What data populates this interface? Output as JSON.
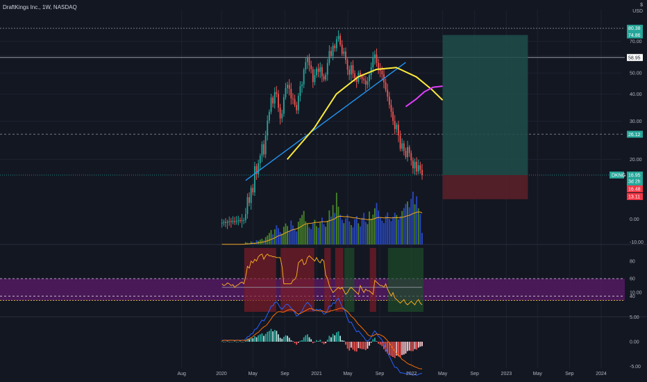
{
  "header": {
    "title": "DraftKings Inc., 1W, NASDAQ",
    "currency_symbol": "$",
    "currency": "USD"
  },
  "colors": {
    "background": "#131722",
    "up": "#26a69a",
    "down": "#ef5350",
    "ma_yellow": "#ffeb3b",
    "ma_magenta": "#e040fb",
    "trendline": "#2196f3",
    "volume_blue": "#2a4cc8",
    "volume_green": "#4a8a2a",
    "volume_ma": "#f5a623",
    "target_zone": "#1f4d4a",
    "stop_zone": "#5a1f28"
  },
  "chart_data": [
    {
      "type": "line",
      "title": "",
      "xlabel": "",
      "ylabel": "",
      "x_ticks": [
        "Aug",
        "2020",
        "May",
        "Sep",
        "2021",
        "May",
        "Sep",
        "2022",
        "May",
        "Sep",
        "2023",
        "May",
        "Sep",
        "2024"
      ],
      "y_ticks": [
        "20.00",
        "30.00",
        "40.00",
        "50.00",
        "60.00",
        "70.00"
      ],
      "ylim": [
        15,
        80
      ],
      "price_labels": [
        {
          "name": "high",
          "value": "80.38",
          "color": "#26a69a"
        },
        {
          "name": "target",
          "value": "74.86",
          "color": "#26a69a"
        },
        {
          "name": "level",
          "value": "58.95",
          "color": "#ffffff"
        },
        {
          "name": "level",
          "value": "26.12",
          "color": "#26a69a"
        },
        {
          "name": "DKNG",
          "value": "16.95",
          "color": "#26a69a",
          "countdown": "3d 2h"
        },
        {
          "name": "stop",
          "value": "16.48",
          "color": "#f23645"
        },
        {
          "name": "stop-low",
          "value": "13.11",
          "color": "#f23645"
        }
      ],
      "candles": {
        "date_start": "2020-01-03",
        "close": [
          10.2,
          10.3,
          10.2,
          10.3,
          10.4,
          10.3,
          10.4,
          10.3,
          10.4,
          10.5,
          10.4,
          10.5,
          10.5,
          11.2,
          13.4,
          12.6,
          14.8,
          14.1,
          18.6,
          17.1,
          19.2,
          20.8,
          23.5,
          21.1,
          25.8,
          30.2,
          33.1,
          38.5,
          36.2,
          40.8,
          40.1,
          34.6,
          30.9,
          32.5,
          38.7,
          42.6,
          44.1,
          42.3,
          38.2,
          37.9,
          35.6,
          33.7,
          39.2,
          43.5,
          44.3,
          51.8,
          56.1,
          58.9,
          54.3,
          52.1,
          45.4,
          48.9,
          52.4,
          50.6,
          53.2,
          48.3,
          46.7,
          49.1,
          55.6,
          63.2,
          59.9,
          66.8,
          65.1,
          71.6,
          74.2,
          67.5,
          61.3,
          62.8,
          57.4,
          51.9,
          49.2,
          54.3,
          49.8,
          47.3,
          45.6,
          50.1,
          48.4,
          47.1,
          46.3,
          44.2,
          45.8,
          48.9,
          53.1,
          58.7,
          60.9,
          55.7,
          52.4,
          51.2,
          49.4,
          45.3,
          41.8,
          38.9,
          35.7,
          33.2,
          30.1,
          27.6,
          28.9,
          25.8,
          22.4,
          23.7,
          21.9,
          20.5,
          22.8,
          21.4,
          19.8,
          18.2,
          19.5,
          17.6,
          18.8,
          17.9,
          16.95
        ]
      },
      "series": [
        {
          "name": "",
          "color": "#2196f3",
          "points": [
            [
              "2020-04-03",
              16
            ],
            [
              "2021-12-10",
              56
            ]
          ]
        },
        {
          "name": "",
          "color": "#ffeb3b",
          "points": [
            [
              "2020-09-10",
              20
            ],
            [
              "2020-12-24",
              28
            ],
            [
              "2021-03-18",
              40
            ],
            [
              "2021-06-10",
              48
            ],
            [
              "2021-08-20",
              52
            ],
            [
              "2021-11-04",
              53
            ],
            [
              "2022-01-20",
              48
            ],
            [
              "2022-03-20",
              42
            ],
            [
              "2022-05-01",
              37.5
            ]
          ]
        },
        {
          "name": "",
          "color": "#e040fb",
          "points": [
            [
              "2021-12-10",
              35
            ],
            [
              "2022-01-20",
              38
            ],
            [
              "2022-02-20",
              41
            ],
            [
              "2022-03-25",
              43
            ],
            [
              "2022-05-01",
              43.5
            ]
          ]
        }
      ],
      "positions": {
        "entry": 16.95,
        "target": 74.86,
        "stop": 13.11,
        "from": "2022-05-01",
        "to": "2023-03-25"
      }
    },
    {
      "type": "bar",
      "title": "",
      "y_ticks": [
        "0.00",
        "-10.00"
      ],
      "ylim": [
        -10,
        60
      ],
      "values": [
        0.3,
        0.2,
        0.1,
        0.3,
        0.2,
        0.1,
        0.2,
        0.3,
        0.2,
        0.1,
        0.4,
        0.3,
        0.2,
        2.5,
        1.8,
        1.5,
        3.2,
        2.8,
        1.9,
        4.5,
        3.8,
        5.1,
        6.2,
        4.7,
        7.8,
        9.6,
        12.3,
        15.4,
        10.8,
        16.2,
        20.5,
        17.4,
        13.2,
        11.6,
        18.9,
        22.4,
        19.7,
        14.8,
        25.6,
        20.3,
        16.7,
        13.9,
        24.3,
        28.1,
        31.5,
        35.8,
        24.7,
        21.9,
        18.2,
        16.4,
        22.8,
        26.3,
        19.5,
        17.8,
        23.4,
        28.7,
        21.6,
        18.9,
        25.3,
        36.4,
        29.8,
        42.1,
        33.6,
        55.2,
        40.3,
        31.7,
        26.4,
        22.8,
        27.9,
        32.1,
        24.5,
        20.7,
        18.3,
        26.8,
        30.4,
        22.6,
        19.2,
        28.5,
        33.7,
        24.1,
        21.8,
        35.2,
        27.4,
        31.9,
        38.6,
        44.3,
        36.1,
        28.7,
        25.4,
        22.8,
        30.6,
        34.2,
        27.3,
        24.9,
        29.6,
        33.8,
        31.4,
        26.7,
        30.2,
        35.7,
        38.9,
        43.2,
        45.8,
        39.6,
        48.7,
        56.3,
        42.8,
        51.4,
        38.6,
        32.7,
        12.3
      ],
      "ma": [
        0.2,
        0.2,
        0.2,
        0.2,
        0.2,
        0.2,
        0.2,
        0.2,
        0.2,
        0.2,
        0.2,
        0.3,
        0.3,
        0.5,
        0.6,
        0.7,
        0.9,
        1.1,
        1.2,
        1.5,
        1.8,
        2.1,
        2.5,
        2.8,
        3.3,
        3.9,
        4.6,
        5.5,
        6.1,
        7.0,
        8.2,
        9.1,
        9.8,
        10.4,
        11.4,
        12.5,
        13.4,
        14.0,
        15.1,
        15.8,
        16.3,
        16.6,
        17.5,
        18.5,
        19.7,
        21.1,
        21.8,
        22.3,
        22.5,
        22.6,
        23.0,
        23.5,
        23.6,
        23.6,
        23.9,
        24.3,
        24.3,
        24.3,
        24.6,
        25.4,
        25.8,
        26.7,
        27.3,
        29.0,
        29.8,
        30.1,
        30.0,
        29.7,
        29.6,
        29.7,
        29.4,
        29.0,
        28.5,
        28.3,
        28.3,
        27.9,
        27.4,
        27.2,
        27.2,
        26.8,
        26.4,
        26.7,
        26.7,
        27.0,
        27.6,
        28.4,
        28.8,
        28.8,
        28.6,
        28.3,
        28.4,
        28.6,
        28.5,
        28.3,
        28.4,
        28.6,
        28.7,
        28.6,
        28.7,
        29.0,
        29.4,
        30.0,
        30.7,
        31.1,
        31.9,
        33.1,
        33.6,
        34.4,
        34.7,
        34.6,
        33.6
      ]
    },
    {
      "type": "line",
      "title": "",
      "y_ticks": [
        "80",
        "60",
        "40"
      ],
      "ylim": [
        22,
        95
      ],
      "bands": [
        [
          35,
          60
        ],
        [
          40,
          40
        ]
      ],
      "values": [
        54,
        52,
        53,
        55,
        54,
        52,
        53,
        50,
        52,
        53,
        55,
        56,
        54,
        62,
        74,
        72,
        80,
        78,
        82,
        80,
        85,
        87,
        88,
        82,
        86,
        88,
        86,
        86,
        85,
        85,
        84,
        84,
        84,
        74,
        54,
        54,
        54,
        54,
        54,
        58,
        59,
        63,
        78,
        80,
        82,
        76,
        77,
        84,
        86,
        84,
        82,
        80,
        84,
        80,
        78,
        82,
        80,
        64,
        60,
        52,
        48,
        44,
        46,
        48,
        50,
        48,
        50,
        46,
        42,
        44,
        48,
        50,
        48,
        46,
        44,
        42,
        52,
        48,
        44,
        48,
        46,
        46,
        44,
        42,
        58,
        56,
        54,
        52,
        52,
        50,
        54,
        48,
        44,
        40,
        44,
        38,
        36,
        34,
        32,
        34,
        36,
        32,
        30,
        32,
        34,
        32,
        30,
        34,
        36,
        32,
        30
      ]
    },
    {
      "type": "bar",
      "title": "",
      "y_ticks": [
        "10.00",
        "5.00",
        "0.00",
        "-5.00"
      ],
      "ylim": [
        -7,
        11
      ],
      "hist": [
        0.1,
        0.0,
        0.0,
        0.1,
        0.0,
        0.0,
        0.0,
        0.1,
        0.0,
        0.0,
        0.1,
        0.0,
        0.0,
        0.3,
        0.6,
        0.5,
        0.8,
        0.7,
        1.1,
        0.9,
        1.3,
        1.5,
        1.7,
        1.2,
        1.6,
        2.0,
        2.2,
        2.6,
        2.1,
        2.4,
        2.2,
        1.5,
        0.8,
        0.6,
        1.0,
        1.3,
        1.2,
        0.8,
        0.3,
        0.1,
        -0.3,
        -0.6,
        -0.2,
        0.2,
        0.3,
        0.9,
        1.3,
        1.5,
        0.9,
        0.5,
        -0.3,
        -0.1,
        0.3,
        0.1,
        0.4,
        -0.2,
        -0.5,
        -0.3,
        0.4,
        1.2,
        0.9,
        1.6,
        1.3,
        1.9,
        2.1,
        1.2,
        0.3,
        0.2,
        -0.6,
        -1.4,
        -1.8,
        -1.2,
        -1.6,
        -1.9,
        -2.0,
        -1.3,
        -1.4,
        -1.5,
        -1.5,
        -1.7,
        -1.4,
        -0.8,
        -0.2,
        0.5,
        0.8,
        0.1,
        -0.4,
        -0.6,
        -0.9,
        -1.5,
        -2.0,
        -2.4,
        -2.7,
        -2.9,
        -3.1,
        -3.3,
        -2.8,
        -3.0,
        -3.2,
        -2.7,
        -2.6,
        -2.4,
        -1.9,
        -1.8,
        -1.9,
        -1.9,
        -1.5,
        -1.6,
        -1.2,
        -1.0,
        -0.9
      ],
      "macd": [
        0.3,
        0.3,
        0.3,
        0.3,
        0.3,
        0.3,
        0.3,
        0.3,
        0.3,
        0.3,
        0.3,
        0.3,
        0.3,
        0.5,
        1.0,
        1.1,
        1.6,
        1.7,
        2.5,
        2.6,
        3.2,
        3.8,
        4.4,
        4.2,
        4.8,
        5.6,
        6.3,
        7.2,
        7.3,
        7.9,
        8.1,
        7.6,
        6.9,
        6.6,
        7.0,
        7.5,
        7.6,
        7.3,
        6.8,
        6.5,
        5.9,
        5.2,
        5.4,
        5.9,
        6.2,
        7.0,
        7.6,
        8.0,
        7.6,
        7.2,
        6.3,
        6.3,
        6.6,
        6.4,
        6.6,
        6.1,
        5.6,
        5.7,
        6.4,
        7.3,
        7.2,
        7.9,
        7.8,
        8.4,
        8.8,
        8.0,
        7.1,
        6.8,
        5.8,
        4.7,
        3.9,
        4.0,
        3.3,
        2.6,
        2.0,
        2.2,
        1.8,
        1.3,
        0.9,
        0.3,
        0.1,
        0.4,
        0.9,
        1.7,
        2.2,
        1.7,
        1.1,
        0.8,
        0.3,
        -0.5,
        -1.4,
        -2.2,
        -3.0,
        -3.7,
        -4.5,
        -5.2,
        -5.2,
        -5.7,
        -6.3,
        -6.3,
        -6.4,
        -6.5,
        -6.3,
        -6.4,
        -6.6,
        -6.8,
        -6.6,
        -6.8,
        -6.6,
        -6.5,
        -6.4
      ],
      "signal": [
        0.2,
        0.3,
        0.3,
        0.2,
        0.3,
        0.3,
        0.3,
        0.2,
        0.3,
        0.3,
        0.2,
        0.3,
        0.3,
        0.2,
        0.4,
        0.6,
        0.8,
        1.0,
        1.4,
        1.7,
        1.9,
        2.3,
        2.7,
        3.0,
        3.2,
        3.6,
        4.1,
        4.6,
        5.2,
        5.5,
        5.9,
        6.1,
        6.1,
        6.0,
        6.0,
        6.2,
        6.4,
        6.5,
        6.5,
        6.4,
        6.2,
        5.8,
        5.6,
        5.7,
        5.9,
        6.1,
        6.3,
        6.5,
        6.7,
        6.7,
        6.6,
        6.4,
        6.3,
        6.3,
        6.2,
        6.3,
        6.1,
        6.0,
        6.0,
        6.1,
        6.3,
        6.3,
        6.5,
        6.5,
        6.7,
        6.8,
        6.8,
        6.6,
        6.4,
        6.1,
        5.7,
        5.2,
        4.9,
        4.5,
        4.0,
        3.5,
        3.2,
        2.8,
        2.4,
        2.0,
        1.5,
        1.2,
        1.1,
        1.2,
        1.4,
        1.6,
        1.5,
        1.4,
        1.2,
        1.0,
        0.6,
        0.2,
        -0.3,
        -0.8,
        -1.4,
        -1.9,
        -2.4,
        -2.7,
        -3.1,
        -3.6,
        -3.8,
        -4.1,
        -4.4,
        -4.6,
        -4.7,
        -4.9,
        -5.1,
        -5.2,
        -5.4,
        -5.5,
        -5.5
      ]
    }
  ]
}
